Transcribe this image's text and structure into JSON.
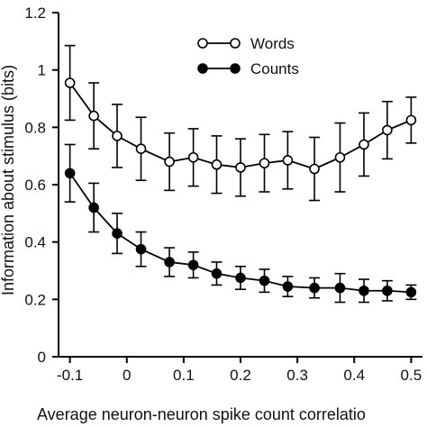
{
  "chart_data": {
    "type": "line",
    "title": "",
    "xlabel": "Average neuron-neuron spike count correlatio",
    "ylabel": "Information about stimulus (bits)",
    "xlim": [
      -0.12,
      0.52
    ],
    "ylim": [
      0,
      1.2
    ],
    "xticks": [
      -0.1,
      0,
      0.1,
      0.2,
      0.3,
      0.4,
      0.5
    ],
    "xtick_labels": [
      "-0.1",
      "0",
      "0.1",
      "0.2",
      "0.3",
      "0.4",
      "0.5"
    ],
    "yticks": [
      0,
      0.2,
      0.4,
      0.6,
      0.8,
      1,
      1.2
    ],
    "ytick_labels": [
      "0",
      "0.2",
      "0.4",
      "0.6",
      "0.8",
      "1",
      "1.2"
    ],
    "grid": false,
    "legend_position": "top-right",
    "x": [
      -0.1,
      -0.058,
      -0.017,
      0.025,
      0.075,
      0.117,
      0.158,
      0.2,
      0.242,
      0.283,
      0.33,
      0.375,
      0.417,
      0.458,
      0.5
    ],
    "series": [
      {
        "name": "Words",
        "marker": "open-circle",
        "color": "#000000",
        "values": [
          0.955,
          0.84,
          0.77,
          0.725,
          0.68,
          0.695,
          0.67,
          0.66,
          0.675,
          0.685,
          0.655,
          0.695,
          0.74,
          0.79,
          0.825
        ],
        "errors": [
          0.13,
          0.115,
          0.11,
          0.11,
          0.1,
          0.1,
          0.1,
          0.1,
          0.1,
          0.1,
          0.11,
          0.12,
          0.11,
          0.1,
          0.08
        ]
      },
      {
        "name": "Counts",
        "marker": "filled-circle",
        "color": "#000000",
        "values": [
          0.64,
          0.52,
          0.43,
          0.375,
          0.33,
          0.32,
          0.29,
          0.275,
          0.265,
          0.245,
          0.24,
          0.24,
          0.23,
          0.23,
          0.225
        ],
        "errors": [
          0.1,
          0.085,
          0.07,
          0.06,
          0.05,
          0.045,
          0.04,
          0.04,
          0.04,
          0.035,
          0.035,
          0.05,
          0.04,
          0.035,
          0.025
        ]
      }
    ]
  }
}
